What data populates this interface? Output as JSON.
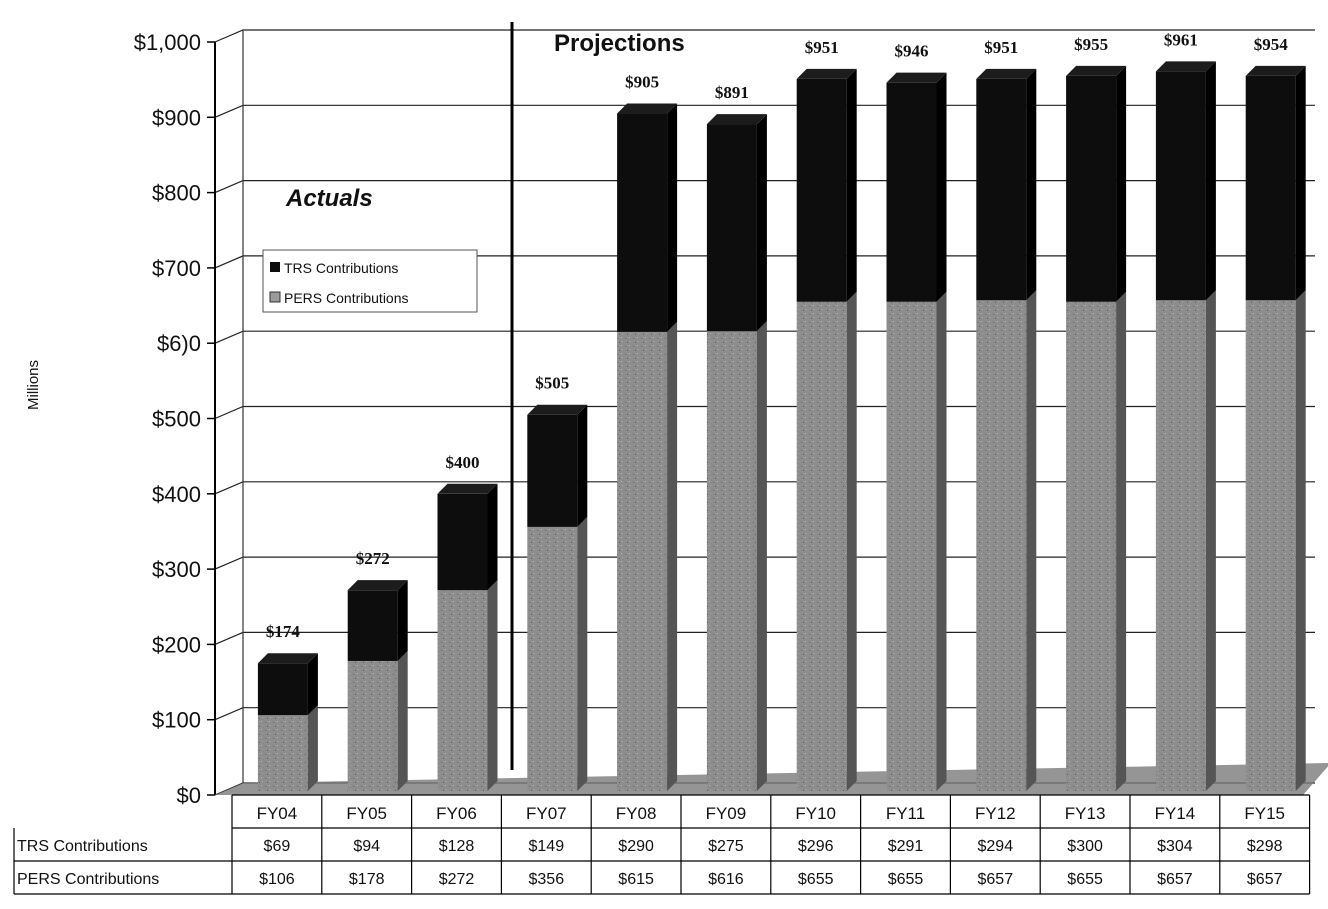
{
  "chart_data": {
    "type": "bar",
    "stacked": true,
    "ylabel": "Millions",
    "ylim": [
      0,
      1000
    ],
    "yticks": [
      "$0",
      "$100",
      "$200",
      "$300",
      "$400",
      "$500",
      "$6)0",
      "$700",
      "$800",
      "$900",
      "$1,000"
    ],
    "grid": true,
    "legend": "upper-left, inside plot",
    "categories": [
      "FY04",
      "FY05",
      "FY06",
      "FY07",
      "FY08",
      "FY09",
      "FY10",
      "FY11",
      "FY12",
      "FY13",
      "FY14",
      "FY15"
    ],
    "series": [
      {
        "name": "PERS Contributions",
        "color": "#8f8f8f",
        "values": [
          106,
          178,
          272,
          356,
          615,
          616,
          655,
          655,
          657,
          655,
          657,
          657
        ]
      },
      {
        "name": "TRS Contributions",
        "color": "#0d0d0d",
        "values": [
          69,
          94,
          128,
          149,
          290,
          275,
          296,
          291,
          294,
          300,
          304,
          298
        ]
      }
    ],
    "totals": [
      "$174",
      "$272",
      "$400",
      "$505",
      "$905",
      "$891",
      "$951",
      "$946",
      "$951",
      "$955",
      "$961",
      "$954"
    ],
    "annotations": {
      "actuals": "Actuals",
      "projections": "Projections"
    },
    "table": {
      "rows": [
        {
          "label": "TRS Contributions",
          "cells": [
            "$69",
            "$94",
            "$128",
            "$149",
            "$290",
            "$275",
            "$296",
            "$291",
            "$294",
            "$300",
            "$304",
            "$298"
          ]
        },
        {
          "label": "PERS Contributions",
          "cells": [
            "$106",
            "$178",
            "$272",
            "$356",
            "$615",
            "$616",
            "$655",
            "$655",
            "$657",
            "$655",
            "$657",
            "$657"
          ]
        }
      ]
    }
  },
  "legend": {
    "trs_label": "TRS Contributions",
    "pers_label": "PERS Contributions"
  }
}
